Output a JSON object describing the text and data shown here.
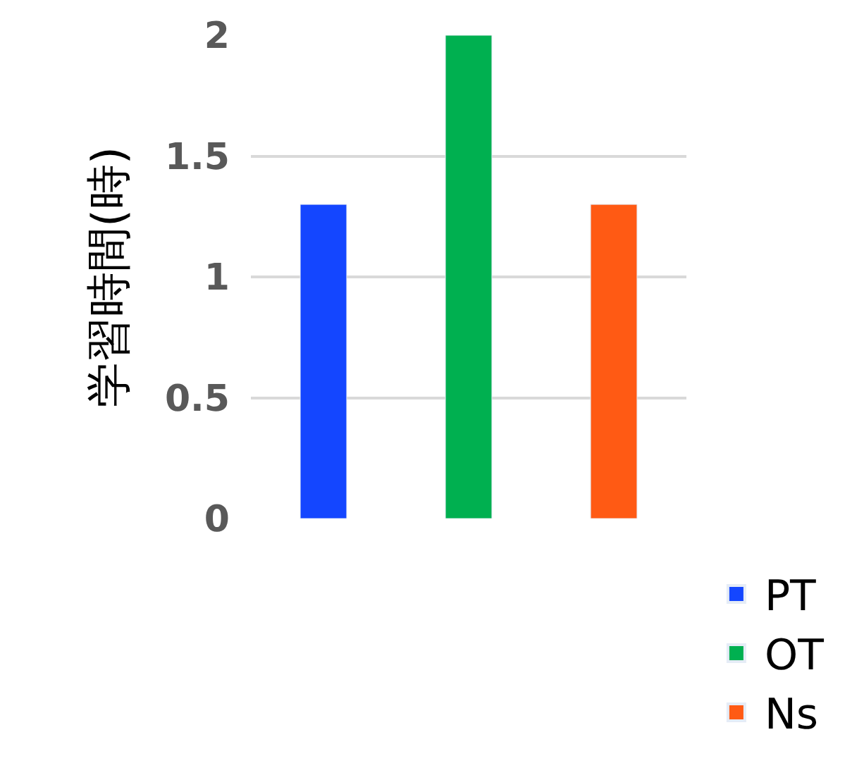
{
  "chart_data": {
    "type": "bar",
    "ylabel": "学習時間(時)",
    "categories": [
      null,
      null,
      null
    ],
    "series": [
      {
        "name": "PT",
        "color": "#1446ff",
        "values": [
          1.3,
          null,
          null
        ]
      },
      {
        "name": "OT",
        "color": "#00b050",
        "values": [
          null,
          2,
          null
        ]
      },
      {
        "name": "Ns",
        "color": "#ff5a14",
        "values": [
          null,
          null,
          1.3
        ]
      }
    ],
    "ylim": [
      0,
      2
    ],
    "yticks": [
      0,
      0.5,
      1,
      1.5,
      2
    ],
    "grid": "y",
    "legend": "bottom right",
    "tick_labels": "y"
  }
}
